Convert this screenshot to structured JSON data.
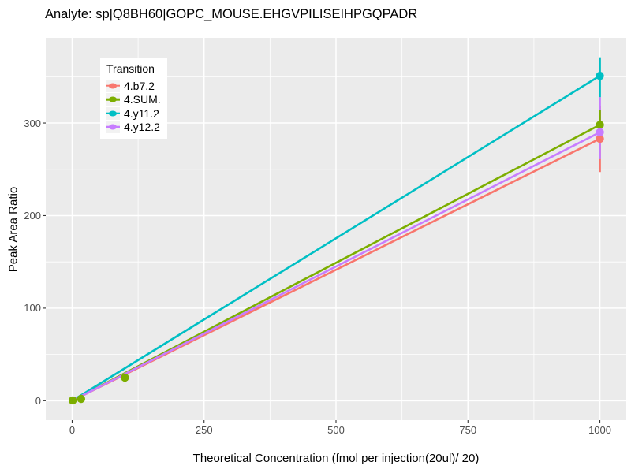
{
  "title": "Analyte: sp|Q8BH60|GOPC_MOUSE.EHGVPILISEIHPGQPADR",
  "chart_data": {
    "type": "line",
    "title": "Analyte: sp|Q8BH60|GOPC_MOUSE.EHGVPILISEIHPGQPADR",
    "xlabel": "Theoretical Concentration (fmol per injection(20ul)/ 20)",
    "ylabel": "Peak Area Ratio",
    "xlim": [
      -50,
      1050
    ],
    "ylim": [
      -21,
      392
    ],
    "x_ticks": [
      0,
      250,
      500,
      750,
      1000
    ],
    "y_ticks": [
      0,
      100,
      200,
      300
    ],
    "x_minor_ticks": [
      125,
      375,
      625,
      875
    ],
    "y_minor_ticks": [
      50,
      150,
      250,
      350
    ],
    "grid": true,
    "panel_bg": "#EBEBEB",
    "grid_color": "#FFFFFF",
    "tick_color": "#333333",
    "legend": {
      "title": "Transition",
      "position": "inside-top-left"
    },
    "series": [
      {
        "name": "4.b7.2",
        "color": "#F8766D",
        "line": {
          "x": [
            0,
            1000
          ],
          "y": [
            0,
            283
          ]
        },
        "points": [
          {
            "x": 1000,
            "y": 283,
            "ymin": 247,
            "ymax": 318
          }
        ]
      },
      {
        "name": "4.SUM.",
        "color": "#7CAE00",
        "line": {
          "x": [
            0,
            1000
          ],
          "y": [
            0,
            298
          ]
        },
        "points": [
          {
            "x": 1,
            "y": 0.3
          },
          {
            "x": 17,
            "y": 2
          },
          {
            "x": 100,
            "y": 25
          },
          {
            "x": 1000,
            "y": 298,
            "ymin": 283,
            "ymax": 314
          }
        ]
      },
      {
        "name": "4.y11.2",
        "color": "#00BFC4",
        "line": {
          "x": [
            0,
            1000
          ],
          "y": [
            0,
            351
          ]
        },
        "points": [
          {
            "x": 1000,
            "y": 351,
            "ymin": 328,
            "ymax": 371
          }
        ]
      },
      {
        "name": "4.y12.2",
        "color": "#C77CFF",
        "line": {
          "x": [
            0,
            1000
          ],
          "y": [
            0,
            290
          ]
        },
        "points": [
          {
            "x": 1000,
            "y": 290,
            "ymin": 261,
            "ymax": 328
          }
        ]
      }
    ],
    "error_bar_draw_order": [
      0,
      3,
      1,
      2
    ]
  }
}
